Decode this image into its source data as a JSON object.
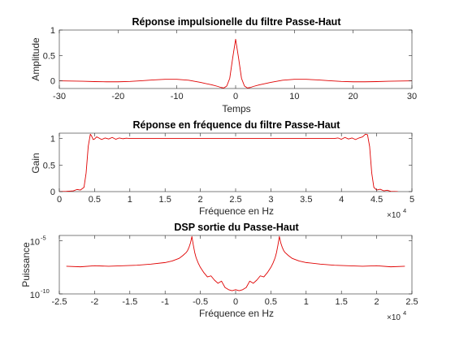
{
  "colors": {
    "line": "#e00000",
    "axis": "#262626",
    "background": "#ffffff"
  },
  "chart_data": [
    {
      "type": "line",
      "title": "Réponse impulsionelle du filtre Passe-Haut",
      "xlabel": "Temps",
      "ylabel": "Amplitude",
      "xlim": [
        -30,
        30
      ],
      "ylim": [
        -0.15,
        1
      ],
      "xticks": [
        -30,
        -20,
        -10,
        0,
        10,
        20,
        30
      ],
      "xtick_labels": [
        "-30",
        "-20",
        "-10",
        "0",
        "10",
        "20",
        "30"
      ],
      "yticks": [
        0,
        0.5,
        1
      ],
      "ytick_labels": [
        "0",
        "0.5",
        "1"
      ],
      "grid": false,
      "series": [
        {
          "x": [
            -30,
            -28,
            -26,
            -24,
            -22,
            -20,
            -18,
            -16,
            -14,
            -12,
            -10,
            -8,
            -6,
            -4,
            -3,
            -2.5,
            -2,
            -1.5,
            -1,
            -0.5,
            0,
            0.5,
            1,
            1.5,
            2,
            2.5,
            3,
            4,
            6,
            8,
            10,
            12,
            14,
            16,
            18,
            20,
            22,
            24,
            26,
            28,
            30
          ],
          "y": [
            0,
            -0.003,
            -0.008,
            -0.014,
            -0.018,
            -0.018,
            -0.011,
            0.002,
            0.018,
            0.031,
            0.031,
            0.012,
            -0.03,
            -0.08,
            -0.11,
            -0.13,
            -0.14,
            -0.1,
            0.05,
            0.45,
            0.82,
            0.45,
            0.05,
            -0.1,
            -0.14,
            -0.13,
            -0.11,
            -0.08,
            -0.03,
            0.012,
            0.031,
            0.031,
            0.018,
            0.002,
            -0.011,
            -0.018,
            -0.018,
            -0.014,
            -0.008,
            -0.003,
            0
          ]
        }
      ]
    },
    {
      "type": "line",
      "title": "Réponse en fréquence du filtre Passe-Haut",
      "xlabel": "Fréquence en Hz",
      "ylabel": "Gain",
      "xlim": [
        0,
        50000
      ],
      "ylim": [
        0,
        1.1
      ],
      "xticks": [
        0,
        5000,
        10000,
        15000,
        20000,
        25000,
        30000,
        35000,
        40000,
        45000,
        50000
      ],
      "xtick_labels": [
        "0",
        "0.5",
        "1",
        "1.5",
        "2",
        "2.5",
        "3",
        "3.5",
        "4",
        "4.5",
        "5"
      ],
      "x_multiplier": {
        "base": "×10",
        "exponent": "4"
      },
      "yticks": [
        0,
        0.5,
        1
      ],
      "ytick_labels": [
        "0",
        "0.5",
        "1"
      ],
      "grid": false,
      "series": [
        {
          "x": [
            0,
            1000,
            2000,
            2500,
            3000,
            3500,
            3800,
            4100,
            4400,
            4600,
            4800,
            5000,
            5300,
            5600,
            6000,
            6500,
            7000,
            7500,
            8000,
            8500,
            9000,
            9500,
            10000,
            12000,
            14000,
            16000,
            18000,
            20000,
            22000,
            24000,
            26000,
            28000,
            30000,
            32000,
            34000,
            36000,
            38000,
            39000,
            39500,
            40000,
            40500,
            41000,
            41500,
            42000,
            42500,
            43000,
            43400,
            43700,
            44000,
            44300,
            44600,
            45000,
            45500,
            46000,
            46500,
            47000,
            48000
          ],
          "y": [
            0,
            0.005,
            0.015,
            0.04,
            0.03,
            0.08,
            0.35,
            0.85,
            1.08,
            1.04,
            0.98,
            0.99,
            1.03,
            1.01,
            0.98,
            1.01,
            0.99,
            1.02,
            0.985,
            1.01,
            0.995,
            1.005,
            1.0,
            1.0,
            1.0,
            1.0,
            1.0,
            1.0,
            1.0,
            1.0,
            1.0,
            1.0,
            1.0,
            1.0,
            1.0,
            1.0,
            1.0,
            1.0,
            1.01,
            0.985,
            1.02,
            0.99,
            1.01,
            0.98,
            1.01,
            1.03,
            1.08,
            1.07,
            0.85,
            0.35,
            0.08,
            0.03,
            0.045,
            0.015,
            0.025,
            0.005,
            0
          ]
        }
      ]
    },
    {
      "type": "line",
      "title": "DSP sortie du Passe-Haut",
      "xlabel": "Fréquence en Hz",
      "ylabel": "Puissance",
      "xlim": [
        -25000,
        25000
      ],
      "ylim_log10": [
        -10,
        -4.5
      ],
      "y_scale": "log",
      "xticks": [
        -25000,
        -20000,
        -15000,
        -10000,
        -5000,
        0,
        5000,
        10000,
        15000,
        20000,
        25000
      ],
      "xtick_labels": [
        "-2.5",
        "-2",
        "-1.5",
        "-1",
        "-0.5",
        "0",
        "0.5",
        "1",
        "1.5",
        "2",
        "2.5"
      ],
      "x_multiplier": {
        "base": "×10",
        "exponent": "4"
      },
      "ytick_labels": [
        {
          "base": "10",
          "exponent": "-5",
          "value_log10": -5
        },
        {
          "base": "10",
          "exponent": "-10",
          "value_log10": -10
        }
      ],
      "grid": false,
      "series": [
        {
          "x": [
            -24000,
            -22000,
            -20000,
            -18000,
            -16000,
            -14000,
            -12000,
            -10000,
            -9000,
            -8000,
            -7500,
            -7000,
            -6800,
            -6600,
            -6400,
            -6200,
            -6000,
            -5800,
            -5600,
            -5300,
            -5000,
            -4500,
            -4000,
            -3500,
            -3000,
            -2500,
            -2000,
            -1500,
            -1000,
            -500,
            0,
            500,
            1000,
            1500,
            2000,
            2500,
            3000,
            3500,
            4000,
            4500,
            5000,
            5300,
            5600,
            5800,
            6000,
            6200,
            6400,
            6600,
            6800,
            7000,
            7500,
            8000,
            9000,
            10000,
            12000,
            14000,
            16000,
            18000,
            20000,
            22000,
            24000
          ],
          "y_log10": [
            -7.4,
            -7.45,
            -7.35,
            -7.4,
            -7.35,
            -7.3,
            -7.2,
            -7.05,
            -6.9,
            -6.65,
            -6.4,
            -6.1,
            -5.9,
            -5.6,
            -5.2,
            -4.6,
            -5.4,
            -6.1,
            -6.6,
            -7.1,
            -7.5,
            -8.0,
            -8.4,
            -8.3,
            -8.7,
            -9.0,
            -8.8,
            -9.4,
            -9.6,
            -9.7,
            -9.6,
            -9.7,
            -9.6,
            -9.4,
            -8.8,
            -9.0,
            -8.7,
            -8.3,
            -8.4,
            -8.0,
            -7.5,
            -7.1,
            -6.6,
            -6.1,
            -5.4,
            -4.6,
            -5.2,
            -5.6,
            -5.9,
            -6.1,
            -6.4,
            -6.65,
            -6.9,
            -7.05,
            -7.2,
            -7.3,
            -7.35,
            -7.4,
            -7.35,
            -7.45,
            -7.4
          ]
        }
      ]
    }
  ]
}
